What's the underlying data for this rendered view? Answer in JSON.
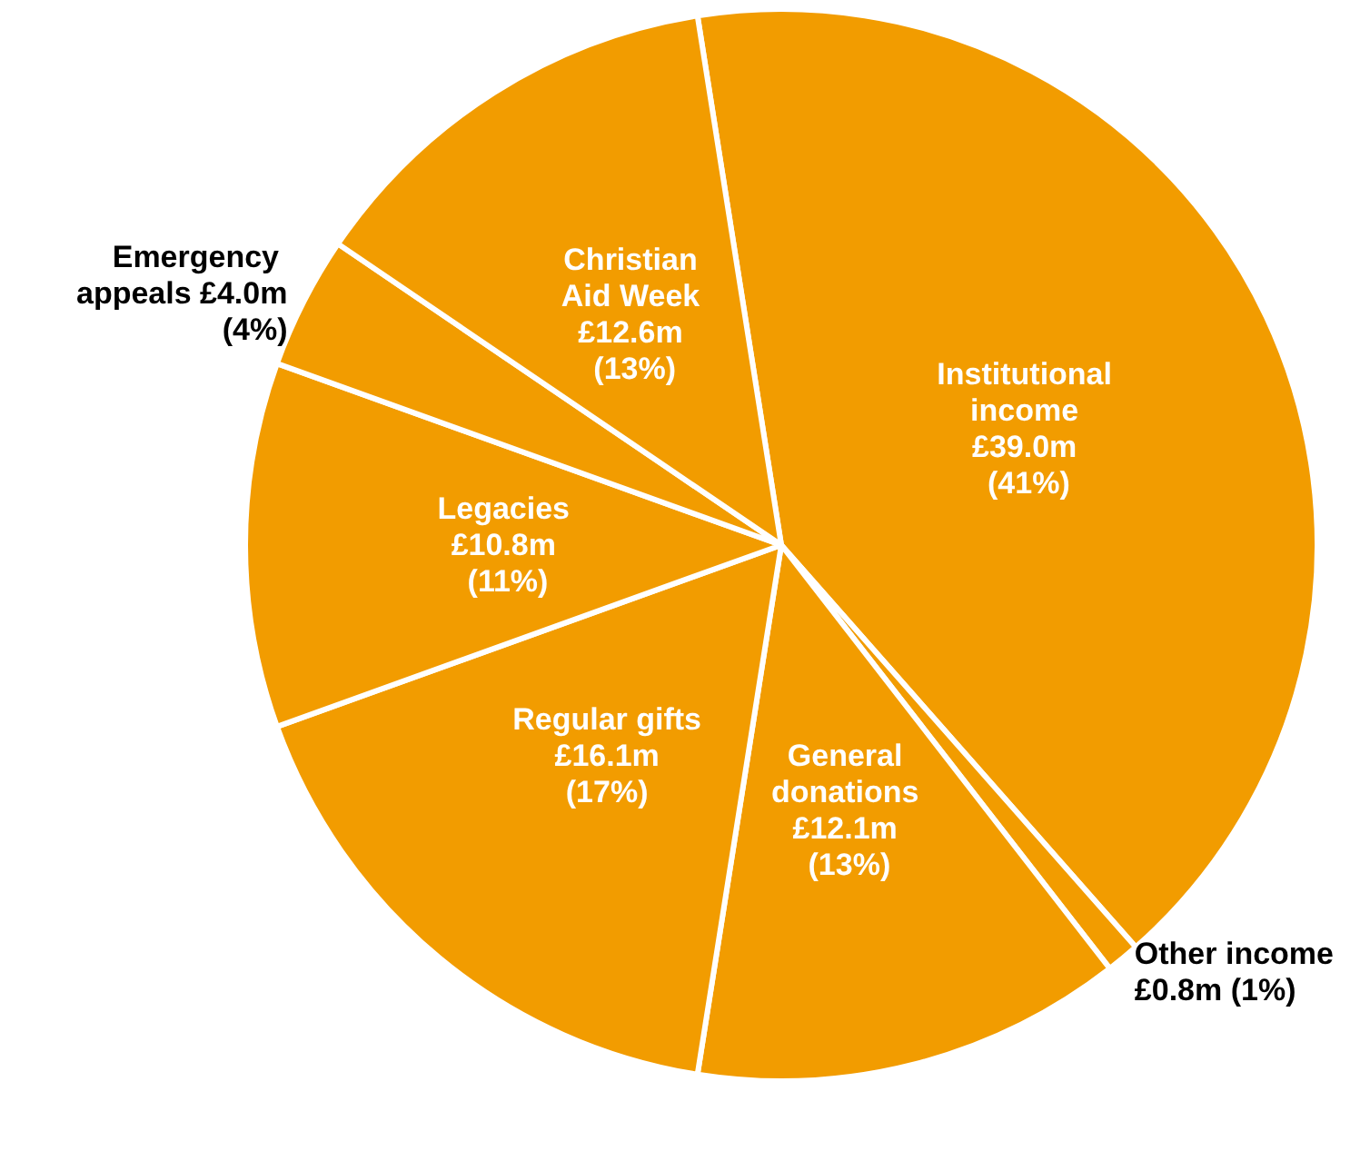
{
  "chart_data": {
    "type": "pie",
    "categories": [
      "Institutional income",
      "Other income",
      "General donations",
      "Regular gifts",
      "Legacies",
      "Emergency appeals",
      "Christian Aid Week"
    ],
    "values": [
      41,
      1,
      13,
      17,
      11,
      4,
      13
    ],
    "value_labels": [
      "£39.0m (41%)",
      "£0.8m (1%)",
      "£12.1m (13%)",
      "£16.1m (17%)",
      "£10.8m (11%)",
      "£4.0m (4%)",
      "£12.6m (13%)"
    ],
    "colors": [
      "#f29c00",
      "#f29c00",
      "#f29c00",
      "#f29c00",
      "#f29c00",
      "#f29c00",
      "#f29c00"
    ],
    "legend": false
  }
}
